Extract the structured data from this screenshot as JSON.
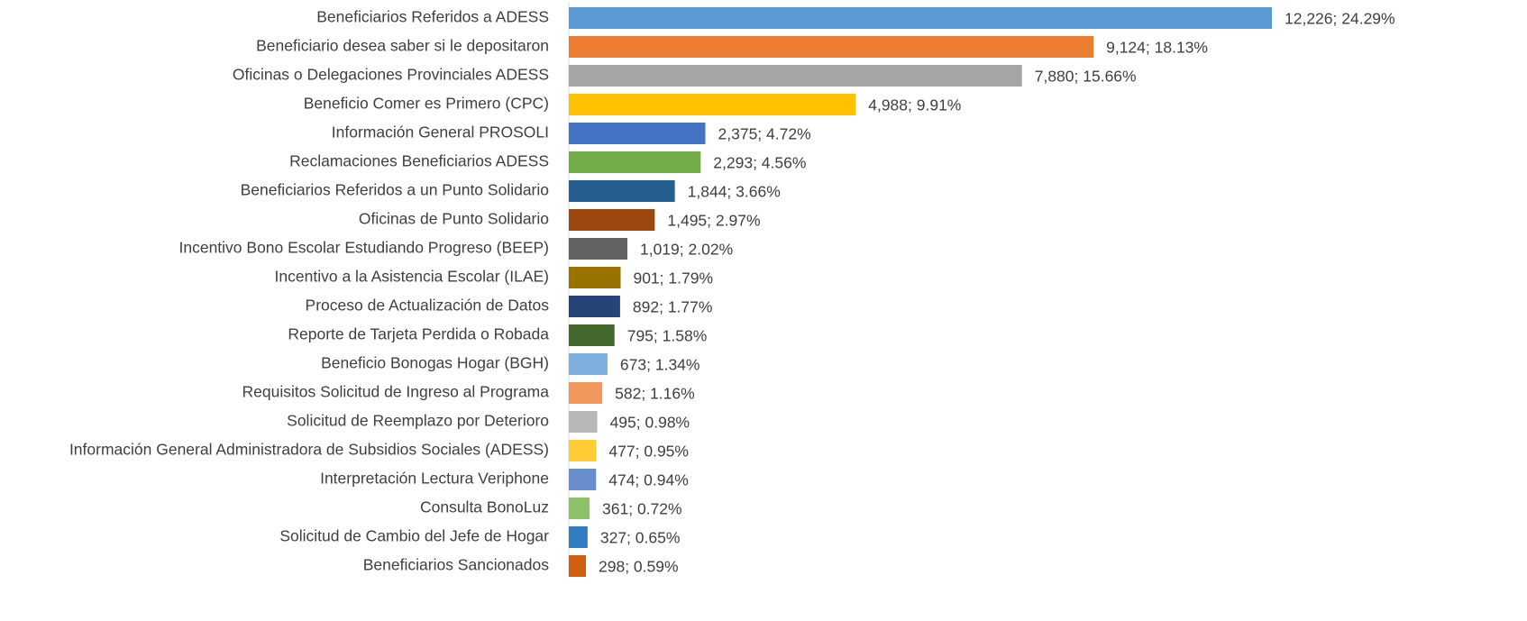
{
  "chart_data": {
    "type": "bar",
    "orientation": "horizontal",
    "categories": [
      "Beneficiarios Referidos a ADESS",
      "Beneficiario desea saber si le depositaron",
      "Oficinas o Delegaciones Provinciales ADESS",
      "Beneficio Comer es Primero (CPC)",
      "Información General PROSOLI",
      "Reclamaciones Beneficiarios ADESS",
      "Beneficiarios Referidos a un Punto Solidario",
      "Oficinas de Punto Solidario",
      "Incentivo Bono Escolar Estudiando Progreso (BEEP)",
      "Incentivo a la Asistencia Escolar (ILAE)",
      "Proceso de Actualización de Datos",
      "Reporte de Tarjeta Perdida o Robada",
      "Beneficio Bonogas Hogar (BGH)",
      "Requisitos Solicitud de Ingreso al Programa",
      "Solicitud de Reemplazo por Deterioro",
      "Información General Administradora de Subsidios Sociales (ADESS)",
      "Interpretación Lectura Veriphone",
      "Consulta BonoLuz",
      "Solicitud de Cambio del Jefe de Hogar",
      "Beneficiarios Sancionados"
    ],
    "values": [
      12226,
      9124,
      7880,
      4988,
      2375,
      2293,
      1844,
      1495,
      1019,
      901,
      892,
      795,
      673,
      582,
      495,
      477,
      474,
      361,
      327,
      298
    ],
    "value_labels": [
      "12,226; 24.29%",
      "9,124; 18.13%",
      "7,880; 15.66%",
      "4,988; 9.91%",
      "2,375; 4.72%",
      "2,293; 4.56%",
      "1,844; 3.66%",
      "1,495; 2.97%",
      "1,019; 2.02%",
      "901; 1.79%",
      "892; 1.77%",
      "795; 1.58%",
      "673; 1.34%",
      "582; 1.16%",
      "495; 0.98%",
      "477; 0.95%",
      "474; 0.94%",
      "361; 0.72%",
      "327; 0.65%",
      "298; 0.59%"
    ],
    "colors": [
      "#5b9bd5",
      "#ed7d31",
      "#a5a5a5",
      "#ffc000",
      "#4472c4",
      "#70ad47",
      "#255e91",
      "#9e480e",
      "#636363",
      "#997300",
      "#264478",
      "#43682b",
      "#7cafdd",
      "#f1975a",
      "#b7b7b7",
      "#ffcd33",
      "#698ed0",
      "#8cc168",
      "#327dc2",
      "#d26012"
    ]
  }
}
